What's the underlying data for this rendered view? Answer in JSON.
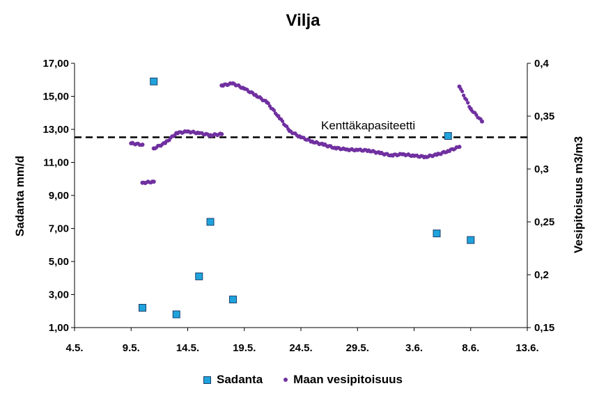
{
  "chart_data": {
    "type": "scatter",
    "title": "Vilja",
    "ylabel": "Sadanta mm/d",
    "y2label": "Vesipitoisuus m3/m3",
    "xticks": [
      "4.5.",
      "9.5.",
      "14.5.",
      "19.5.",
      "24.5.",
      "29.5.",
      "3.6.",
      "8.6.",
      "13.6."
    ],
    "yticks": [
      "1,00",
      "3,00",
      "5,00",
      "7,00",
      "9,00",
      "11,00",
      "13,00",
      "15,00",
      "17,00"
    ],
    "y2ticks": [
      "0,15",
      "0,2",
      "0,25",
      "0,3",
      "0,35",
      "0,4"
    ],
    "xlim_days_from_4_5": [
      0,
      40
    ],
    "ylim": [
      1,
      17
    ],
    "y2lim": [
      0.15,
      0.4
    ],
    "grid": false,
    "legend_position": "bottom",
    "reference_line": {
      "label": "Kenttäkapasiteetti",
      "y2": 0.33,
      "style": "dashed"
    },
    "series": [
      {
        "name": "Sadanta",
        "axis": "left",
        "marker": "square",
        "color": "#1fa3dc",
        "points": [
          {
            "x": "10.5.",
            "y": 2.2
          },
          {
            "x": "11.5.",
            "y": 15.9
          },
          {
            "x": "13.5.",
            "y": 1.8
          },
          {
            "x": "15.5.",
            "y": 4.1
          },
          {
            "x": "16.5.",
            "y": 7.4
          },
          {
            "x": "18.5.",
            "y": 2.7
          },
          {
            "x": "5.6.",
            "y": 6.7
          },
          {
            "x": "6.6.",
            "y": 12.6
          },
          {
            "x": "8.6.",
            "y": 6.3
          }
        ]
      },
      {
        "name": "Maan vesipitoisuus",
        "axis": "right",
        "marker": "dot",
        "color": "#7030a0",
        "points": [
          {
            "x": "9.5.",
            "y": 0.3243
          },
          {
            "x": "10.5.",
            "y": 0.323
          },
          {
            "x": "10.5.",
            "y": 0.287
          },
          {
            "x": "11.5.",
            "y": 0.288
          },
          {
            "x": "11.5.",
            "y": 0.3195
          },
          {
            "x": "12.5.",
            "y": 0.3245
          },
          {
            "x": "13.5.",
            "y": 0.334
          },
          {
            "x": "14.5.",
            "y": 0.3355
          },
          {
            "x": "15.5.",
            "y": 0.334
          },
          {
            "x": "16.5.",
            "y": 0.332
          },
          {
            "x": "17.5.",
            "y": 0.333
          },
          {
            "x": "17.5.",
            "y": 0.379
          },
          {
            "x": "18.5.",
            "y": 0.381
          },
          {
            "x": "19.5.",
            "y": 0.376
          },
          {
            "x": "20.5.",
            "y": 0.37
          },
          {
            "x": "21.5.",
            "y": 0.363
          },
          {
            "x": "22.5.",
            "y": 0.35
          },
          {
            "x": "23.5.",
            "y": 0.336
          },
          {
            "x": "24.5.",
            "y": 0.33
          },
          {
            "x": "25.5.",
            "y": 0.326
          },
          {
            "x": "26.5.",
            "y": 0.323
          },
          {
            "x": "27.5.",
            "y": 0.32
          },
          {
            "x": "28.5.",
            "y": 0.3185
          },
          {
            "x": "29.5.",
            "y": 0.318
          },
          {
            "x": "30.5.",
            "y": 0.3175
          },
          {
            "x": "31.5.",
            "y": 0.315
          },
          {
            "x": "1.6.",
            "y": 0.313
          },
          {
            "x": "2.6.",
            "y": 0.314
          },
          {
            "x": "3.6.",
            "y": 0.3125
          },
          {
            "x": "4.6.",
            "y": 0.3115
          },
          {
            "x": "5.6.",
            "y": 0.3135
          },
          {
            "x": "6.6.",
            "y": 0.317
          },
          {
            "x": "7.6.",
            "y": 0.321
          },
          {
            "x": "7.6.",
            "y": 0.378
          },
          {
            "x": "8.6.",
            "y": 0.357
          },
          {
            "x": "9.6.",
            "y": 0.345
          }
        ]
      }
    ]
  }
}
